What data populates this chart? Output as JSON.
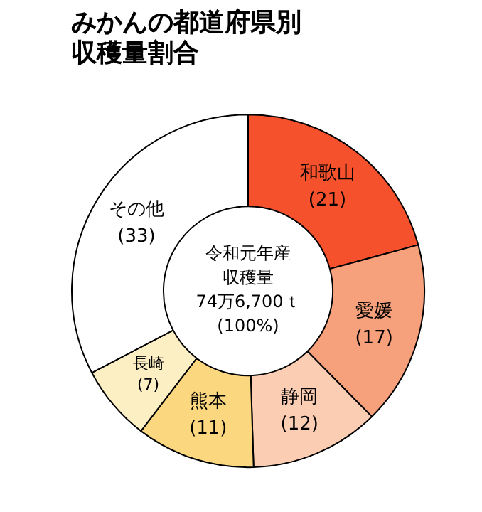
{
  "chart_data": {
    "type": "donut",
    "title": "みかんの都道府県別収穫量割合",
    "categories": [
      "和歌山",
      "愛媛",
      "静岡",
      "熊本",
      "長崎",
      "その他"
    ],
    "values": [
      21,
      17,
      12,
      11,
      7,
      33
    ],
    "value_labels": [
      "(21)",
      "(17)",
      "(12)",
      "(11)",
      "(7)",
      "(33)"
    ],
    "colors": [
      "#f4512c",
      "#f7a07c",
      "#fbcdb3",
      "#fbd77f",
      "#fdefc4",
      "#ffffff"
    ],
    "annotations": [
      "令和元年産",
      "収穫量",
      "74万6,700ｔ",
      "(100%)"
    ],
    "legend": false
  }
}
